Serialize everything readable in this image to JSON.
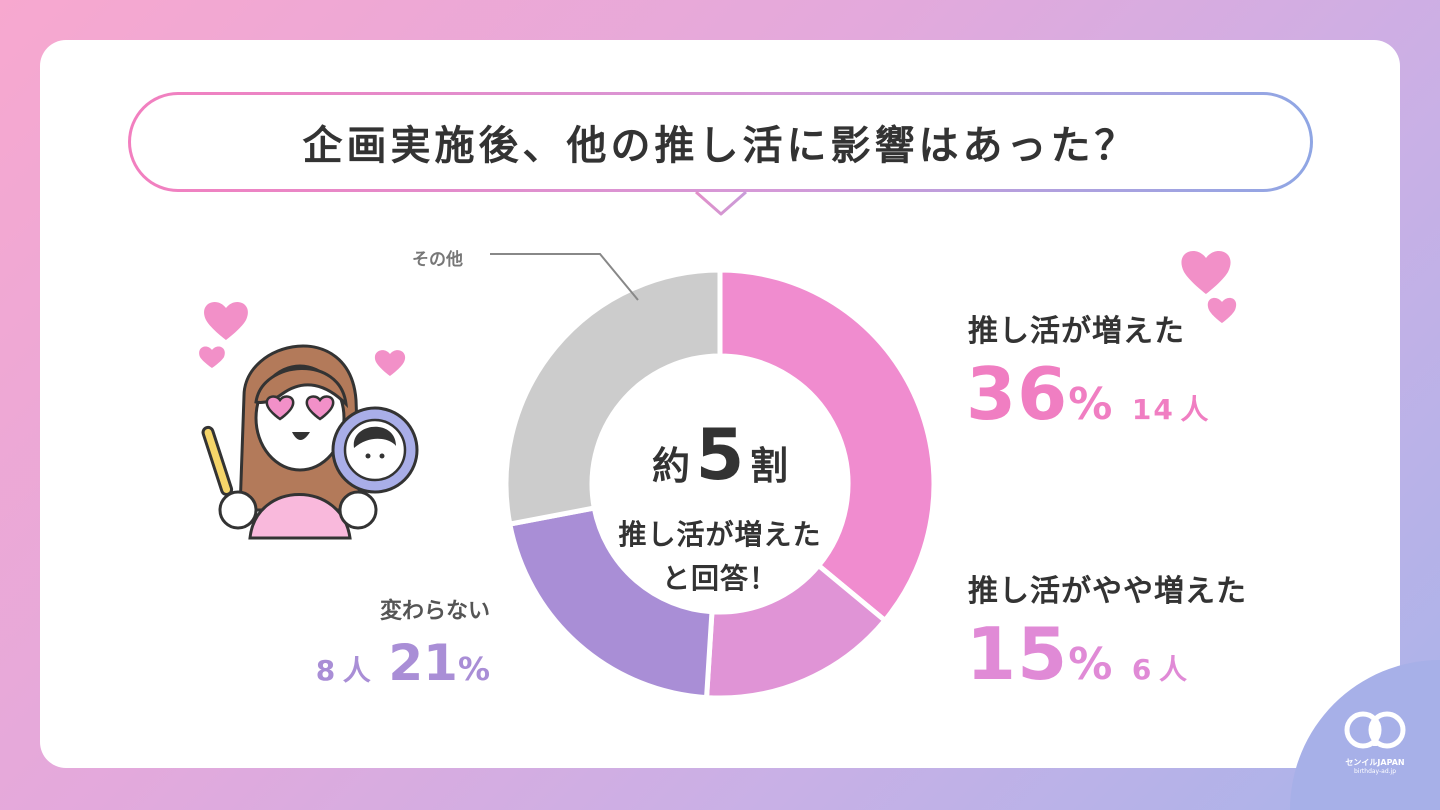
{
  "title": "企画実施後、他の推し活に影響はあった？",
  "center": {
    "prefix": "約",
    "number": "5",
    "suffix": "割",
    "line1": "推し活が増えた",
    "line2": "と回答！"
  },
  "chart_data": {
    "type": "pie",
    "donut": true,
    "categories": [
      "推し活が増えた",
      "推し活がやや増えた",
      "変わらない",
      "その他"
    ],
    "values": [
      36,
      15,
      21,
      28
    ],
    "counts": [
      "14",
      "6",
      "8",
      ""
    ],
    "percent_labels": [
      "36",
      "15",
      "21",
      ""
    ],
    "colors": [
      "#f08ccf",
      "#e094d6",
      "#a98ed6",
      "#cccccc"
    ],
    "percent_sign": "%",
    "unit": "人"
  },
  "logo": {
    "brand": "センイルJAPAN",
    "domain": "birthday-ad.jp"
  },
  "colors": {
    "pink": "#f07ec2",
    "purple": "#a98ed6",
    "dark": "#333333"
  }
}
